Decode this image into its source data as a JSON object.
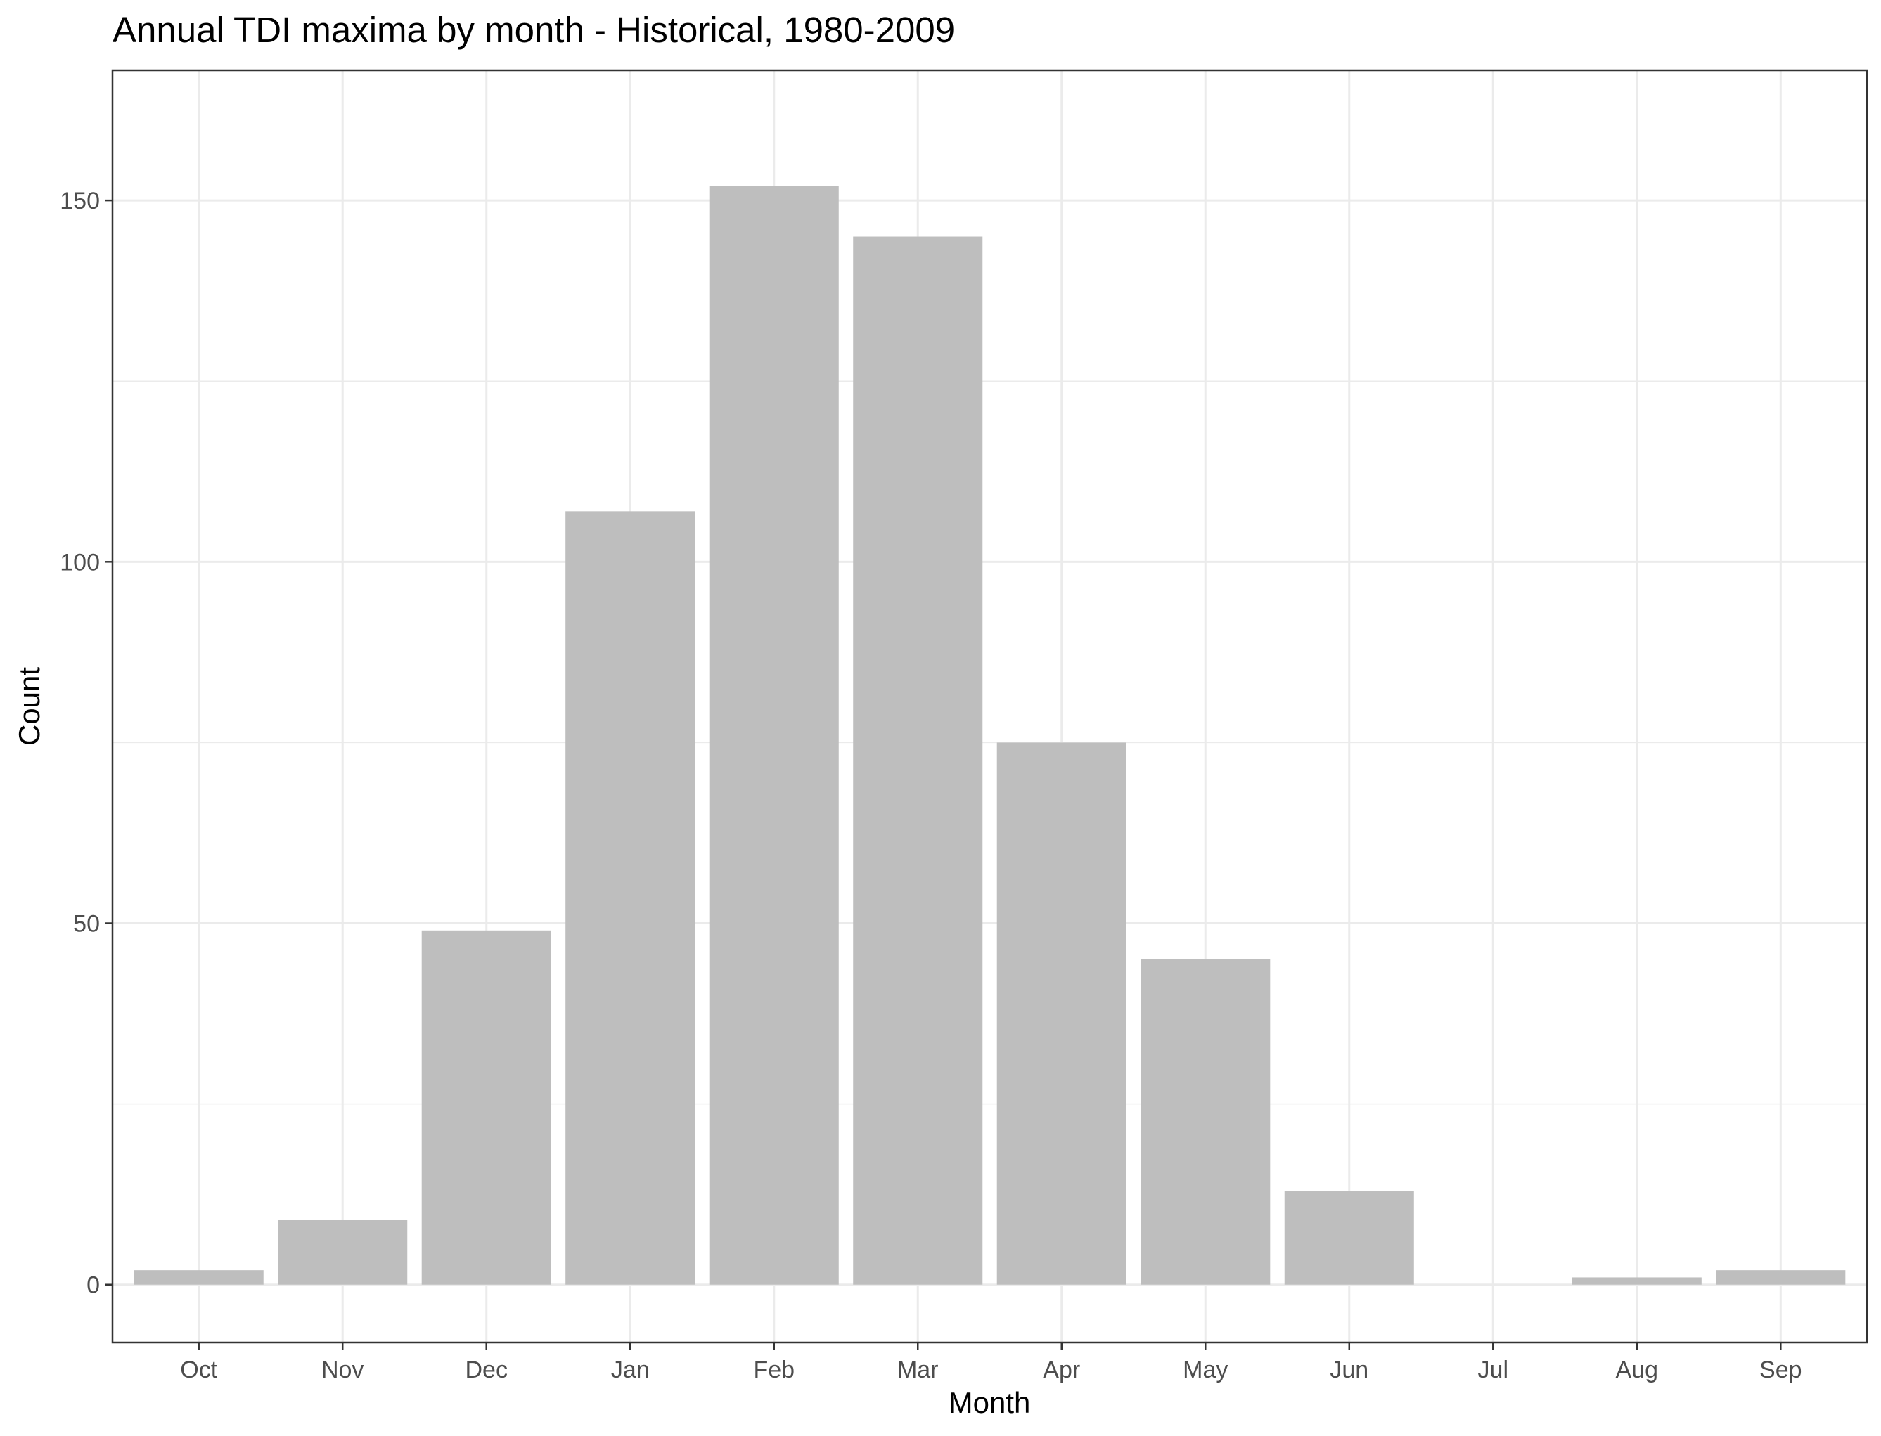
{
  "chart_data": {
    "type": "bar",
    "title": "Annual TDI maxima by month - Historical, 1980-2009",
    "xlabel": "Month",
    "ylabel": "Count",
    "categories": [
      "Oct",
      "Nov",
      "Dec",
      "Jan",
      "Feb",
      "Mar",
      "Apr",
      "May",
      "Jun",
      "Jul",
      "Aug",
      "Sep"
    ],
    "values": [
      2,
      9,
      49,
      107,
      152,
      145,
      75,
      45,
      13,
      0,
      1,
      2
    ],
    "ylim": [
      -8,
      168
    ],
    "yticks": [
      0,
      50,
      100,
      150
    ],
    "y_minor_ticks": [
      25,
      75,
      125
    ],
    "grid": true,
    "bar_color": "#bebebe",
    "gridline_color": "#ebebeb",
    "panel_border_color": "#333333"
  }
}
